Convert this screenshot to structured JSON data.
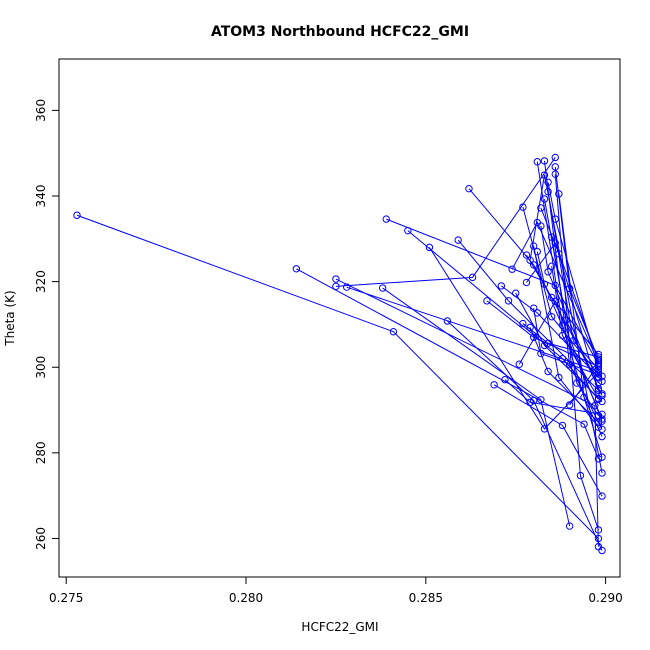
{
  "chart_data": {
    "type": "line",
    "title": "ATOM3 Northbound HCFC22_GMI",
    "xlabel": "HCFC22_GMI",
    "ylabel": "Theta (K)",
    "xlim": [
      0.2748,
      0.2904
    ],
    "ylim": [
      251,
      372
    ],
    "xticks": [
      0.275,
      0.28,
      0.285,
      0.29
    ],
    "xtick_labels": [
      "0.275",
      "0.280",
      "0.285",
      "0.290"
    ],
    "yticks": [
      260,
      280,
      300,
      320,
      340,
      360
    ],
    "ytick_labels": [
      "260",
      "280",
      "300",
      "320",
      "340",
      "360"
    ],
    "grid": false,
    "legend": "none",
    "series_color": "#0000ff",
    "marker": "open-circle",
    "series": [
      {
        "x": [
          0.2753,
          0.2841,
          0.2898
        ],
        "y": [
          335.5,
          308.3,
          260.0
        ]
      },
      {
        "x": [
          0.2814,
          0.2894,
          0.2898
        ],
        "y": [
          323.0,
          286.7,
          278.6
        ]
      },
      {
        "x": [
          0.2825,
          0.2897,
          0.2898
        ],
        "y": [
          320.6,
          291.0,
          258.1
        ]
      },
      {
        "x": [
          0.2825,
          0.2863,
          0.2886
        ],
        "y": [
          318.9,
          321.0,
          349.0
        ]
      },
      {
        "x": [
          0.2828,
          0.2897,
          0.289
        ],
        "y": [
          318.7,
          299.4,
          291.2
        ]
      },
      {
        "x": [
          0.2838,
          0.2882,
          0.289
        ],
        "y": [
          318.5,
          292.4,
          262.9
        ]
      },
      {
        "x": [
          0.2839,
          0.2886,
          0.2898
        ],
        "y": [
          334.6,
          319.1,
          300.6
        ]
      },
      {
        "x": [
          0.2845,
          0.2888,
          0.2898
        ],
        "y": [
          331.9,
          302.0,
          292.5
        ]
      },
      {
        "x": [
          0.2851,
          0.2883,
          0.2898
        ],
        "y": [
          328.0,
          285.6,
          298.8
        ]
      },
      {
        "x": [
          0.2856,
          0.288,
          0.2899
        ],
        "y": [
          310.8,
          292.2,
          257.2
        ]
      },
      {
        "x": [
          0.2859,
          0.2873,
          0.2899
        ],
        "y": [
          329.7,
          315.5,
          293.8
        ]
      },
      {
        "x": [
          0.2862,
          0.288,
          0.2898
        ],
        "y": [
          341.7,
          323.9,
          296.3
        ]
      },
      {
        "x": [
          0.2869,
          0.2888,
          0.2899
        ],
        "y": [
          295.9,
          286.4,
          269.9
        ]
      },
      {
        "x": [
          0.2874,
          0.2881,
          0.2898
        ],
        "y": [
          322.9,
          333.8,
          301.0
        ]
      },
      {
        "x": [
          0.2876,
          0.2886,
          0.2899
        ],
        "y": [
          300.7,
          315.4,
          287.4
        ]
      },
      {
        "x": [
          0.2877,
          0.2885,
          0.2898
        ],
        "y": [
          337.4,
          311.8,
          298.4
        ]
      },
      {
        "x": [
          0.2879,
          0.2883,
          0.2899
        ],
        "y": [
          325.0,
          344.9,
          275.3
        ]
      },
      {
        "x": [
          0.288,
          0.2887,
          0.2898
        ],
        "y": [
          328.3,
          297.6,
          286.0
        ]
      },
      {
        "x": [
          0.2881,
          0.2888,
          0.2899
        ],
        "y": [
          348.0,
          309.8,
          279.0
        ]
      },
      {
        "x": [
          0.2882,
          0.2884,
          0.2898
        ],
        "y": [
          333.0,
          322.3,
          295.0
        ]
      },
      {
        "x": [
          0.2883,
          0.289,
          0.2899
        ],
        "y": [
          348.2,
          300.6,
          285.5
        ]
      },
      {
        "x": [
          0.2884,
          0.2891,
          0.2898
        ],
        "y": [
          341.0,
          306.2,
          299.5
        ]
      },
      {
        "x": [
          0.2885,
          0.2892,
          0.2898
        ],
        "y": [
          330.4,
          296.3,
          288.7
        ]
      },
      {
        "x": [
          0.2886,
          0.2893,
          0.2898
        ],
        "y": [
          345.1,
          274.7,
          262.0
        ]
      },
      {
        "x": [
          0.2887,
          0.2894,
          0.2899
        ],
        "y": [
          340.5,
          293.0,
          283.8
        ]
      },
      {
        "x": [
          0.2878,
          0.2886,
          0.2898
        ],
        "y": [
          319.8,
          329.0,
          301.5
        ]
      },
      {
        "x": [
          0.2875,
          0.2883,
          0.2899
        ],
        "y": [
          317.3,
          305.1,
          292.0
        ]
      },
      {
        "x": [
          0.2871,
          0.2881,
          0.2898
        ],
        "y": [
          319.0,
          312.7,
          297.7
        ]
      },
      {
        "x": [
          0.2867,
          0.288,
          0.2898
        ],
        "y": [
          315.5,
          307.0,
          300.2
        ]
      },
      {
        "x": [
          0.2872,
          0.2879,
          0.2899
        ],
        "y": [
          297.1,
          291.8,
          289.0
        ]
      },
      {
        "x": [
          0.2878,
          0.2885,
          0.2898
        ],
        "y": [
          326.2,
          316.3,
          303.0
        ]
      },
      {
        "x": [
          0.288,
          0.2882,
          0.2899
        ],
        "y": [
          313.8,
          303.2,
          297.9
        ]
      },
      {
        "x": [
          0.2882,
          0.2887,
          0.2898
        ],
        "y": [
          337.2,
          326.5,
          294.6
        ]
      },
      {
        "x": [
          0.2879,
          0.2884,
          0.2898
        ],
        "y": [
          309.3,
          299.0,
          287.1
        ]
      },
      {
        "x": [
          0.2884,
          0.2886,
          0.2899
        ],
        "y": [
          343.2,
          334.6,
          296.7
        ]
      },
      {
        "x": [
          0.2885,
          0.2888,
          0.2898
        ],
        "y": [
          323.6,
          307.4,
          292.7
        ]
      },
      {
        "x": [
          0.2883,
          0.2889,
          0.2899
        ],
        "y": [
          339.3,
          311.0,
          293.4
        ]
      },
      {
        "x": [
          0.2877,
          0.2884,
          0.2898
        ],
        "y": [
          310.2,
          305.6,
          302.4
        ]
      },
      {
        "x": [
          0.2886,
          0.289,
          0.2898
        ],
        "y": [
          346.8,
          318.4,
          301.9
        ]
      },
      {
        "x": [
          0.2881,
          0.2883,
          0.2899
        ],
        "y": [
          327.0,
          319.4,
          287.9
        ]
      }
    ]
  }
}
